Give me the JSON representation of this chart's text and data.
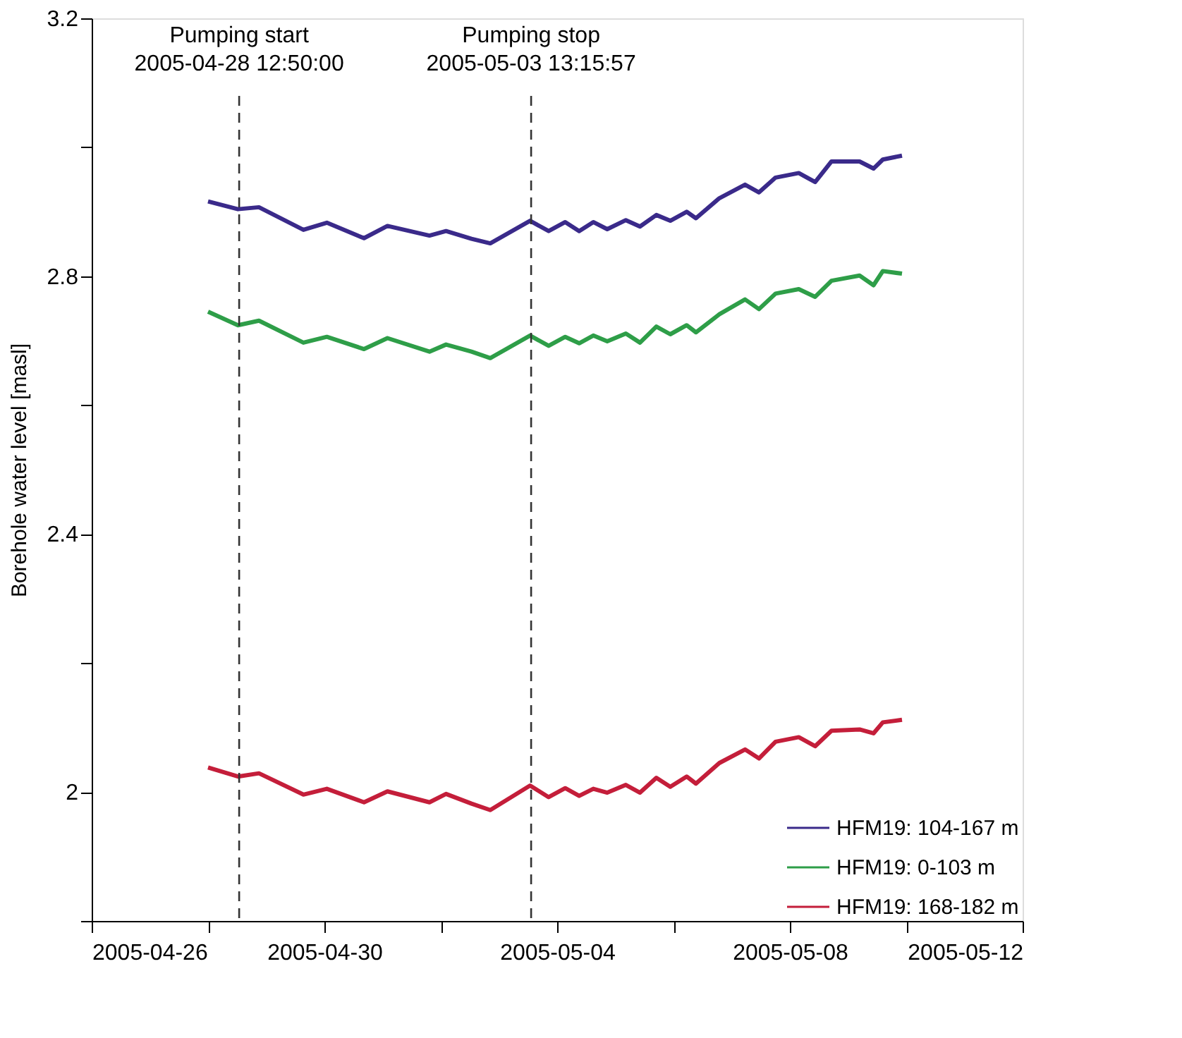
{
  "chart_data": {
    "type": "line",
    "xlabel": null,
    "ylabel": "Borehole water level [masl]",
    "x": [
      "2005-04-28T00:00",
      "2005-04-28T12:20",
      "2005-04-28T21:00",
      "2005-04-29T15:20",
      "2005-04-30T01:00",
      "2005-04-30T16:20",
      "2005-05-01T02:00",
      "2005-05-01T19:20",
      "2005-05-02T02:10",
      "2005-05-02T12:40",
      "2005-05-02T20:25",
      "2005-05-03T12:50",
      "2005-05-03T20:30",
      "2005-05-04T03:20",
      "2005-05-04T09:05",
      "2005-05-04T14:55",
      "2005-05-04T20:40",
      "2005-05-05T04:20",
      "2005-05-05T10:10",
      "2005-05-05T16:55",
      "2005-05-05T22:40",
      "2005-05-06T05:25",
      "2005-05-06T09:15",
      "2005-05-06T18:55",
      "2005-05-07T05:30",
      "2005-05-07T11:15",
      "2005-05-07T18:05",
      "2005-05-08T03:40",
      "2005-05-08T10:25",
      "2005-05-08T17:10",
      "2005-05-09T04:45",
      "2005-05-09T10:30",
      "2005-05-09T14:20",
      "2005-05-09T22:15"
    ],
    "series": [
      {
        "name": "HFM19: 104-167 m",
        "color": "#3a2a8a",
        "values": [
          2.916,
          2.904,
          2.907,
          2.872,
          2.883,
          2.859,
          2.878,
          2.863,
          2.87,
          2.858,
          2.851,
          2.886,
          2.87,
          2.884,
          2.87,
          2.884,
          2.873,
          2.887,
          2.877,
          2.895,
          2.886,
          2.9,
          2.89,
          2.921,
          2.942,
          2.93,
          2.953,
          2.96,
          2.946,
          2.978,
          2.978,
          2.967,
          2.981,
          2.987
        ]
      },
      {
        "name": "HFM19: 0-103 m",
        "color": "#2e9e48",
        "values": [
          2.745,
          2.724,
          2.731,
          2.697,
          2.706,
          2.687,
          2.704,
          2.683,
          2.694,
          2.683,
          2.673,
          2.708,
          2.692,
          2.706,
          2.696,
          2.708,
          2.699,
          2.711,
          2.697,
          2.722,
          2.71,
          2.724,
          2.713,
          2.741,
          2.764,
          2.749,
          2.773,
          2.78,
          2.768,
          2.793,
          2.801,
          2.786,
          2.808,
          2.804
        ]
      },
      {
        "name": "HFM19: 168-182 m",
        "color": "#c41e3a",
        "values": [
          2.038,
          2.024,
          2.029,
          1.996,
          2.005,
          1.984,
          2.001,
          1.984,
          1.997,
          1.982,
          1.972,
          2.01,
          1.992,
          2.006,
          1.994,
          2.005,
          1.999,
          2.011,
          1.999,
          2.022,
          2.008,
          2.024,
          2.013,
          2.045,
          2.066,
          2.052,
          2.078,
          2.085,
          2.071,
          2.095,
          2.097,
          2.091,
          2.108,
          2.112
        ]
      }
    ],
    "xlim": [
      "2005-04-26",
      "2005-05-12"
    ],
    "xticks": [
      "2005-04-26",
      {
        "value": "2005-04-28",
        "label": null
      },
      "2005-04-30",
      {
        "value": "2005-05-02",
        "label": null
      },
      "2005-05-04",
      {
        "value": "2005-05-06",
        "label": null
      },
      "2005-05-08",
      {
        "value": "2005-05-10",
        "label": null
      },
      "2005-05-12"
    ],
    "ylim": [
      1.8,
      3.2
    ],
    "yticks": [
      {
        "value": 1.8,
        "label": null
      },
      2,
      {
        "value": 2.2,
        "label": null
      },
      2.4,
      {
        "value": 2.6,
        "label": null
      },
      2.8,
      {
        "value": 3.0,
        "label": null
      },
      3.2
    ],
    "ref_lines": [
      {
        "axis": "x",
        "value": "2005-04-28T12:50:00",
        "label": "Pumping start\n2005-04-28 12:50:00",
        "color": "#333333",
        "line_style": "dashed"
      },
      {
        "axis": "x",
        "value": "2005-05-03T13:15:57",
        "label": "Pumping stop\n2005-05-03 13:15:57",
        "color": "#333333",
        "line_style": "dashed"
      }
    ],
    "legend": "bottom right",
    "grid": false,
    "marker": "none",
    "line_style": "solid"
  }
}
